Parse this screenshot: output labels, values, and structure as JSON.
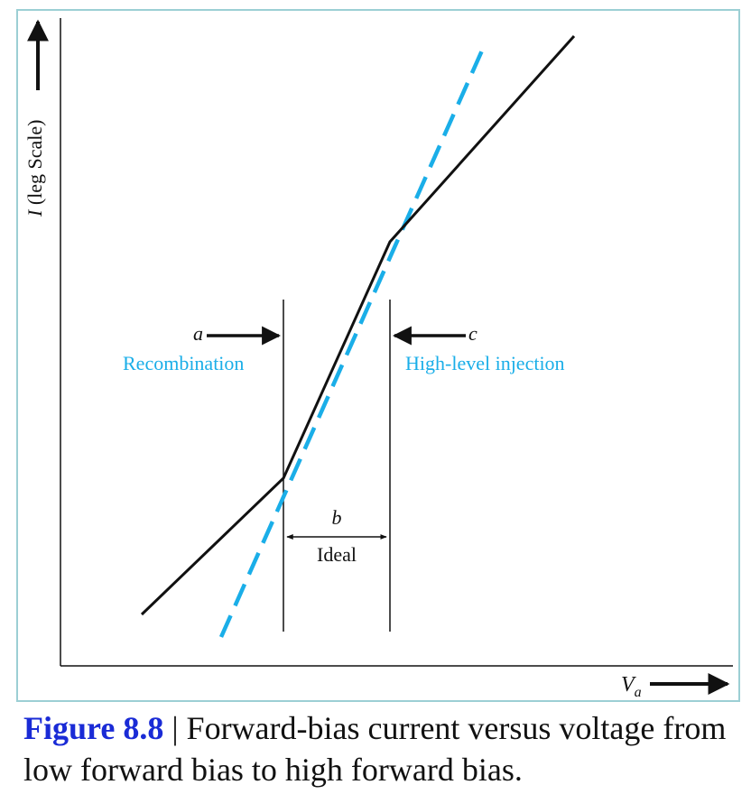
{
  "figure": {
    "y_axis_label_italic": "I",
    "y_axis_label_rest": " (leg Scale)",
    "x_axis_label_main": "V",
    "x_axis_label_sub": "a",
    "region_a": {
      "letter": "a",
      "name": "Recombination"
    },
    "region_b": {
      "letter": "b",
      "name": "Ideal"
    },
    "region_c": {
      "letter": "c",
      "name": "High-level injection"
    },
    "colors": {
      "accent": "#1aaee8",
      "curve": "#111111",
      "frame": "#9ccfd4",
      "caption_label": "#1a2bd6"
    }
  },
  "caption": {
    "label": "Figure 8.8",
    "separator": " | ",
    "text": "Forward-bias current versus voltage from low forward bias to high forward bias."
  }
}
